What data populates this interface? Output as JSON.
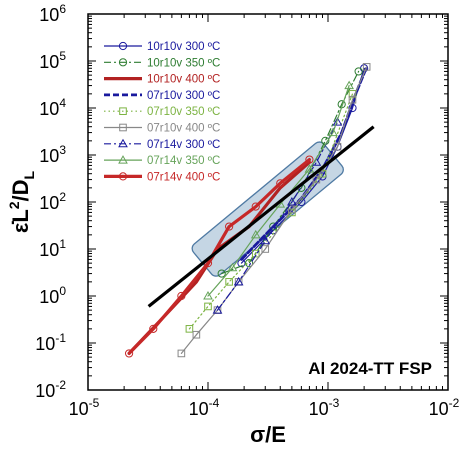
{
  "chart_data": {
    "type": "line",
    "xscale": "log",
    "yscale": "log",
    "xlim": [
      1e-05,
      0.01
    ],
    "ylim": [
      0.01,
      1000000.0
    ],
    "x_ticks": [
      {
        "base": "10",
        "exp": "-5"
      },
      {
        "base": "10",
        "exp": "-4"
      },
      {
        "base": "10",
        "exp": "-3"
      },
      {
        "base": "10",
        "exp": "-2"
      }
    ],
    "y_ticks": [
      {
        "base": "10",
        "exp": "-2"
      },
      {
        "base": "10",
        "exp": "-1"
      },
      {
        "base": "10",
        "exp": "0"
      },
      {
        "base": "10",
        "exp": "1"
      },
      {
        "base": "10",
        "exp": "2"
      },
      {
        "base": "10",
        "exp": "3"
      },
      {
        "base": "10",
        "exp": "4"
      },
      {
        "base": "10",
        "exp": "5"
      },
      {
        "base": "10",
        "exp": "6"
      }
    ],
    "xlabel": "σ/E",
    "ylabel": "ε̇L²/D_L",
    "annotation": "Al 2024-TT FSP",
    "legend_position": "top-left",
    "grid": false,
    "series": [
      {
        "name": "10r10v 300 ºC",
        "color": "#1a1a9e",
        "style": "solid",
        "marker": "circle",
        "x": [
          0.00019,
          0.00035,
          0.0006,
          0.0009,
          0.0012,
          0.0016,
          0.002
        ],
        "y": [
          5,
          25,
          100,
          350,
          1500,
          10000,
          70000
        ]
      },
      {
        "name": "10r10v 350 ºC",
        "color": "#2e7d32",
        "style": "dashdot",
        "marker": "circle",
        "x": [
          0.00013,
          0.00022,
          0.00035,
          0.0006,
          0.00095,
          0.0013,
          0.0018
        ],
        "y": [
          3,
          5,
          30,
          200,
          2000,
          12000,
          60000
        ]
      },
      {
        "name": "10r10v 400 ºC",
        "color": "#b22222",
        "style": "thick",
        "marker": "none",
        "x": [
          2.2e-05,
          4e-05,
          8e-05,
          0.00012,
          0.00022,
          0.0004,
          0.0007
        ],
        "y": [
          0.06,
          0.3,
          2,
          10,
          30,
          200,
          700
        ]
      },
      {
        "name": "07r10v 300 ºC",
        "color": "#1a1a9e",
        "style": "dashed",
        "marker": "none",
        "x": [
          0.00019,
          0.00035,
          0.0006,
          0.0009,
          0.0013,
          0.0017,
          0.0021
        ],
        "y": [
          6,
          30,
          120,
          500,
          3000,
          20000,
          75000
        ]
      },
      {
        "name": "07r10v 350 ºC",
        "color": "#7cb342",
        "style": "dotted",
        "marker": "square",
        "x": [
          7e-05,
          0.0001,
          0.00015,
          0.00025,
          0.0005,
          0.0009,
          0.0016
        ],
        "y": [
          0.2,
          0.6,
          2,
          8,
          60,
          400,
          20000
        ]
      },
      {
        "name": "07r10v 400 ºC",
        "color": "#888888",
        "style": "solid",
        "marker": "square",
        "x": [
          6e-05,
          8e-05,
          0.00012,
          0.00018,
          0.0003,
          0.0005,
          0.0008,
          0.0012,
          0.0016,
          0.0021
        ],
        "y": [
          0.06,
          0.15,
          0.5,
          2,
          10,
          70,
          300,
          1500,
          15000,
          75000
        ]
      },
      {
        "name": "07r14v 300 ºC",
        "color": "#1a1a9e",
        "style": "dashdot",
        "marker": "triangle",
        "x": [
          0.00012,
          0.00018,
          0.0003,
          0.0005,
          0.0008,
          0.0012
        ],
        "y": [
          0.5,
          2,
          15,
          100,
          700,
          5000
        ]
      },
      {
        "name": "07r14v 350 ºC",
        "color": "#66a35a",
        "style": "solid",
        "marker": "triangle",
        "x": [
          0.0001,
          0.00016,
          0.00025,
          0.0004,
          0.0007,
          0.0011,
          0.0015
        ],
        "y": [
          1,
          4,
          20,
          90,
          500,
          3000,
          30000
        ]
      },
      {
        "name": "07r14v 400 ºC",
        "color": "#c62828",
        "style": "thick",
        "marker": "circle",
        "x": [
          2.2e-05,
          3.5e-05,
          6e-05,
          0.0001,
          0.00015,
          0.00025,
          0.0004,
          0.0007
        ],
        "y": [
          0.06,
          0.2,
          1,
          5,
          30,
          80,
          250,
          800
        ]
      }
    ],
    "fit_line": {
      "color": "#000000",
      "x": [
        3.2e-05,
        0.0024
      ],
      "y": [
        0.6,
        4000
      ]
    },
    "highlight_box": {
      "color": "#7fa3c4",
      "x_range": [
        9e-05,
        0.0011
      ],
      "y_range": [
        5,
        1000
      ]
    }
  }
}
